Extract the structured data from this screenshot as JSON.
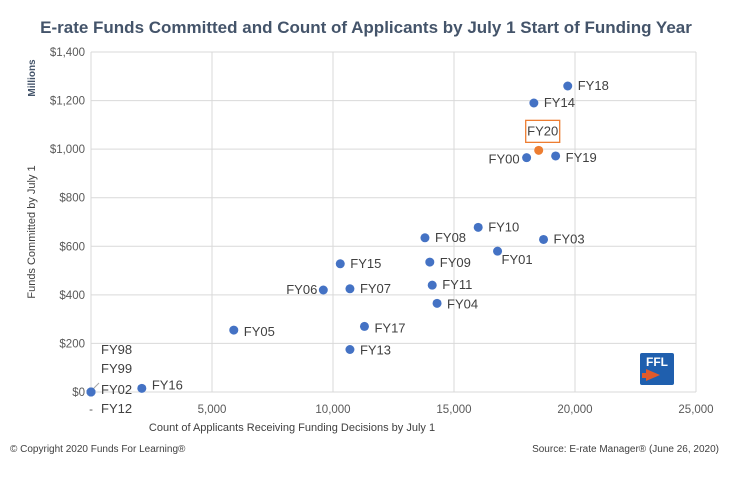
{
  "chart_data": {
    "type": "scatter",
    "title": "E-rate Funds Committed and Count of Applicants by July 1 Start of Funding Year",
    "xlabel": "Count of Applicants Receiving Funding Decisions by July 1",
    "ylabel": "Funds Committed by July 1",
    "y_units": "Millions",
    "xlim": [
      0,
      25000
    ],
    "ylim": [
      0,
      1400
    ],
    "x_ticks": [
      "-",
      "5,000",
      "10,000",
      "15,000",
      "20,000",
      "25,000"
    ],
    "y_ticks": [
      "$0",
      "$200",
      "$400",
      "$600",
      "$800",
      "$1,000",
      "$1,200",
      "$1,400"
    ],
    "grid": true,
    "points": [
      {
        "label": "FY98",
        "x": 0,
        "y": 0
      },
      {
        "label": "FY99",
        "x": 0,
        "y": 0
      },
      {
        "label": "FY02",
        "x": 0,
        "y": 0
      },
      {
        "label": "FY12",
        "x": 0,
        "y": 0
      },
      {
        "label": "FY16",
        "x": 2100,
        "y": 15
      },
      {
        "label": "FY05",
        "x": 5900,
        "y": 255
      },
      {
        "label": "FY06",
        "x": 9600,
        "y": 420
      },
      {
        "label": "FY07",
        "x": 10700,
        "y": 425
      },
      {
        "label": "FY15",
        "x": 10300,
        "y": 528
      },
      {
        "label": "FY13",
        "x": 10700,
        "y": 175
      },
      {
        "label": "FY17",
        "x": 11300,
        "y": 270
      },
      {
        "label": "FY08",
        "x": 13800,
        "y": 635
      },
      {
        "label": "FY09",
        "x": 14000,
        "y": 535
      },
      {
        "label": "FY11",
        "x": 14100,
        "y": 440
      },
      {
        "label": "FY04",
        "x": 14300,
        "y": 365
      },
      {
        "label": "FY10",
        "x": 16000,
        "y": 678
      },
      {
        "label": "FY01",
        "x": 16800,
        "y": 580
      },
      {
        "label": "FY03",
        "x": 18700,
        "y": 628
      },
      {
        "label": "FY00",
        "x": 18000,
        "y": 965
      },
      {
        "label": "FY19",
        "x": 19200,
        "y": 972
      },
      {
        "label": "FY20",
        "x": 18500,
        "y": 995,
        "highlight": true
      },
      {
        "label": "FY14",
        "x": 18300,
        "y": 1190
      },
      {
        "label": "FY18",
        "x": 19700,
        "y": 1260
      }
    ],
    "colors": {
      "points": "#4472c4",
      "highlight": "#ed7d31",
      "grid": "#d9d9d9"
    }
  },
  "footer": {
    "copyright": "© Copyright 2020 Funds For Learning®",
    "source": "Source: E-rate Manager® (June 26, 2020)"
  },
  "logo": {
    "text": "FFL"
  }
}
